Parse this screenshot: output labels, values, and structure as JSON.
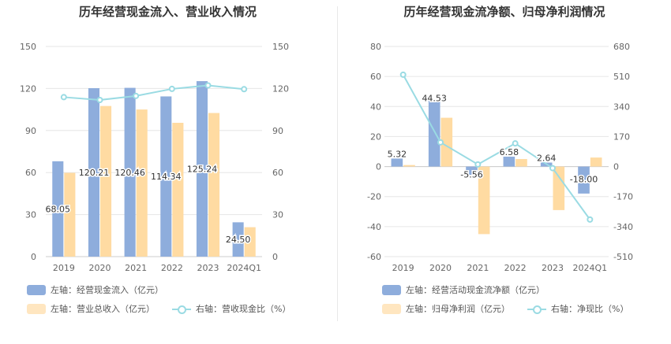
{
  "chart_data": [
    {
      "type": "bar",
      "title": "历年经营现金流入、营业收入情况",
      "categories": [
        "2019",
        "2020",
        "2021",
        "2022",
        "2023",
        "2024Q1"
      ],
      "left_axis": {
        "ticks": [
          "0",
          "30",
          "60",
          "90",
          "120",
          "150"
        ],
        "ylim": [
          0,
          150
        ]
      },
      "right_axis": {
        "ticks": [
          "0",
          "30",
          "60",
          "90",
          "120",
          "150"
        ],
        "ylim": [
          0,
          150
        ]
      },
      "series": [
        {
          "name": "左轴：经营现金流入（亿元）",
          "kind": "bar",
          "axis": "left",
          "color": "#8eaddc",
          "values": [
            68.05,
            120.21,
            120.46,
            114.34,
            125.24,
            24.5
          ],
          "labels": [
            "68.05",
            "120.21",
            "120.46",
            "114.34",
            "125.24",
            "24.50"
          ]
        },
        {
          "name": "左轴：营业总收入（亿元）",
          "kind": "bar",
          "axis": "left",
          "color": "#ffdba2",
          "values": [
            59.8,
            107.5,
            105.0,
            95.5,
            102.5,
            21.0
          ]
        },
        {
          "name": "右轴：营收现金比（%）",
          "kind": "line",
          "axis": "right",
          "color": "#9adbe3",
          "values": [
            113.8,
            111.8,
            114.7,
            119.7,
            122.2,
            119.5
          ]
        }
      ],
      "grid": true
    },
    {
      "type": "bar",
      "title": "历年经营现金流净额、归母净利润情况",
      "categories": [
        "2019",
        "2020",
        "2021",
        "2022",
        "2023",
        "2024Q1"
      ],
      "left_axis": {
        "ticks": [
          "-60",
          "-40",
          "-20",
          "0",
          "20",
          "40",
          "60",
          "80"
        ],
        "ylim": [
          -60,
          80
        ]
      },
      "right_axis": {
        "ticks": [
          "-510",
          "-340",
          "-170",
          "0",
          "170",
          "340",
          "510",
          "680"
        ],
        "ylim": [
          -510,
          680
        ]
      },
      "series": [
        {
          "name": "左轴：经营活动现金流净额（亿元）",
          "kind": "bar",
          "axis": "left",
          "color": "#8eaddc",
          "values": [
            5.32,
            44.53,
            -5.56,
            6.58,
            2.64,
            -18.0
          ],
          "labels": [
            "5.32",
            "44.53",
            "-5.56",
            "6.58",
            "2.64",
            "-18.00"
          ]
        },
        {
          "name": "左轴：归母净利润（亿元）",
          "kind": "bar",
          "axis": "left",
          "color": "#ffdba2",
          "values": [
            1.0,
            32.5,
            -45.0,
            5.0,
            -29.0,
            6.0
          ]
        },
        {
          "name": "右轴：净现比（%）",
          "kind": "line",
          "axis": "right",
          "color": "#9adbe3",
          "values": [
            520,
            137,
            12,
            131,
            -9,
            -300
          ]
        }
      ],
      "grid": true
    }
  ]
}
